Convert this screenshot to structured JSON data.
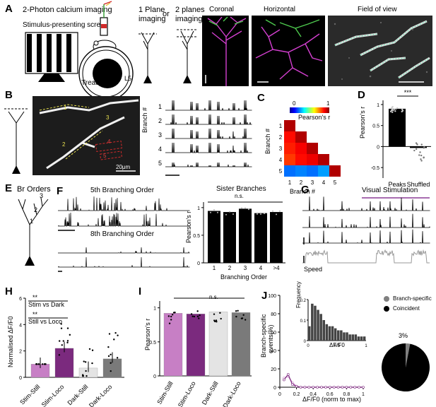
{
  "panels": {
    "a": "A",
    "b": "B",
    "c": "C",
    "d": "D",
    "e": "E",
    "f": "F",
    "g": "G",
    "h": "H",
    "i": "I",
    "j": "J"
  },
  "a": {
    "imaging": "2-Photon calcium imaging",
    "screen": "Stimulus-presenting screen",
    "treadmill": "Treadmill",
    "one_plane_1": "1 Plane",
    "one_plane_2": "imaging",
    "or": "or",
    "two_planes_1": "2 planes",
    "two_planes_2": "imaging",
    "l5": "L5",
    "coronal": "Coronal",
    "horizontal": "Horizontal",
    "fov": "Field of view"
  },
  "b": {
    "scale": "20μm",
    "branch_axis": "Branch #",
    "rows": [
      "1",
      "2",
      "3",
      "4",
      "5"
    ],
    "img_labels": [
      "1",
      "2",
      "3",
      "4",
      "5"
    ]
  },
  "c": {
    "cbar_min": "0",
    "cbar_max": "1",
    "cbar_label": "Pearson's r",
    "ylabel": "Branch #",
    "xlabel": "Branch #",
    "ticks": [
      "1",
      "2",
      "3",
      "4",
      "5"
    ],
    "matrix": [
      [
        1.0
      ],
      [
        0.9,
        1.0
      ],
      [
        0.88,
        0.92,
        1.0
      ],
      [
        0.85,
        0.9,
        0.93,
        1.0
      ],
      [
        0.2,
        0.22,
        0.2,
        0.25,
        1.0
      ]
    ]
  },
  "d": {
    "sig": "***",
    "ylabel": "Pearson's r",
    "yticks": [
      "1",
      "0.5",
      "0",
      "-0.5"
    ],
    "chart_data": {
      "type": "bar",
      "categories": [
        "Peaks",
        "Shuffled"
      ],
      "values": [
        0.9,
        -0.03
      ],
      "ylim": [
        -0.75,
        1.1
      ]
    }
  },
  "e": {
    "title": "Br Orders",
    "orders": [
      "1",
      "2",
      "3"
    ]
  },
  "f": {
    "top": "5th Branching Order",
    "bottom": "8th Branching Order",
    "sister_title": "Sister Branches",
    "ns": "n.s.",
    "ylabel": "Pearson's r",
    "xlabel": "Branching Order",
    "yticks": [
      "1",
      "0.5",
      "0"
    ],
    "chart_data": {
      "type": "bar",
      "categories": [
        "1",
        "2",
        "3",
        "4",
        ">4"
      ],
      "values": [
        0.94,
        0.92,
        0.98,
        0.9,
        0.92
      ],
      "ylim": [
        0,
        1.1
      ]
    }
  },
  "g": {
    "title": "Visual Stimulation",
    "speed": "Speed"
  },
  "h": {
    "sig1": "**",
    "label1": "Stim vs Dark",
    "sig2": "**",
    "label2": "Still vs Loco",
    "ylabel": "Normalised ΔF/F0",
    "yticks": [
      "6",
      "4",
      "2",
      "0"
    ],
    "chart_data": {
      "type": "bar",
      "categories": [
        "Stim-Still",
        "Stim-Loco",
        "Dark-Still",
        "Dark-Loco"
      ],
      "values": [
        1.0,
        2.2,
        0.7,
        1.4
      ],
      "ylim": [
        0,
        6
      ],
      "colors": [
        "#c77fc5",
        "#7b2a7e",
        "#e4e4e4",
        "#7a7a7a"
      ]
    }
  },
  "i": {
    "ns": "n.s.",
    "ylabel": "Pearson's r",
    "yticks": [
      "1",
      "0.5",
      "0"
    ],
    "chart_data": {
      "type": "bar",
      "categories": [
        "Stim-Still",
        "Stim-Loco",
        "Dark-Still",
        "Dark-Loco"
      ],
      "values": [
        0.92,
        0.91,
        0.94,
        0.93
      ],
      "ylim": [
        0,
        1.1
      ],
      "colors": [
        "#c77fc5",
        "#7b2a7e",
        "#e4e4e4",
        "#7a7a7a"
      ]
    }
  },
  "j": {
    "ylabel_1": "Branch-specific",
    "ylabel_2": "events(%)",
    "xlabel": "ΔF/F0 (norm to max)",
    "yticks": [
      "100",
      "80",
      "60",
      "40",
      "20",
      "0"
    ],
    "xticks": [
      "0",
      "0.2",
      "0.4",
      "0.6",
      "0.8",
      "1"
    ],
    "inset_ylabel": "Frequency",
    "inset_xlabel": "ΔF/F0",
    "inset_yticks": [
      "0.2",
      "0.1",
      "0"
    ],
    "inset_xticks": [
      "0",
      "0.5",
      "1"
    ],
    "legend_specific": "Branch-specific",
    "legend_coincident": "Coincident",
    "pie_pct": "3%",
    "chart_data": [
      {
        "type": "line",
        "x": [
          0.05,
          0.1,
          0.15,
          0.2,
          0.25,
          0.3,
          0.35,
          0.4,
          0.45,
          0.5,
          0.55,
          0.6,
          0.65,
          0.7,
          0.75,
          0.8,
          0.85,
          0.9,
          0.95,
          1.0
        ],
        "series": [
          {
            "values": [
              10,
              12,
              5,
              1,
              0,
              0,
              0,
              0,
              0,
              0,
              0,
              0,
              0,
              0,
              0,
              0,
              0,
              0,
              0,
              0
            ]
          },
          {
            "values": [
              8,
              14,
              3,
              1,
              0,
              0,
              0,
              0,
              0,
              0,
              0,
              0,
              0,
              0,
              0,
              0,
              0,
              0,
              0,
              0
            ]
          }
        ],
        "xlim": [
          0,
          1
        ],
        "ylim": [
          0,
          100
        ]
      },
      {
        "type": "bar",
        "x": [
          0.05,
          0.1,
          0.15,
          0.2,
          0.25,
          0.3,
          0.35,
          0.4,
          0.45,
          0.5,
          0.55,
          0.6,
          0.65,
          0.7,
          0.75,
          0.8,
          0.85,
          0.9,
          0.95,
          1.0
        ],
        "values": [
          0.07,
          0.18,
          0.17,
          0.15,
          0.13,
          0.1,
          0.08,
          0.07,
          0.07,
          0.06,
          0.05,
          0.05,
          0.04,
          0.04,
          0.03,
          0.03,
          0.03,
          0.02,
          0.02,
          0.02
        ],
        "xlim": [
          0,
          1
        ],
        "ylim": [
          0,
          0.2
        ]
      },
      {
        "type": "pie",
        "categories": [
          "Branch-specific",
          "Coincident"
        ],
        "values": [
          3,
          97
        ],
        "colors": [
          "#808080",
          "#000000"
        ]
      }
    ]
  }
}
